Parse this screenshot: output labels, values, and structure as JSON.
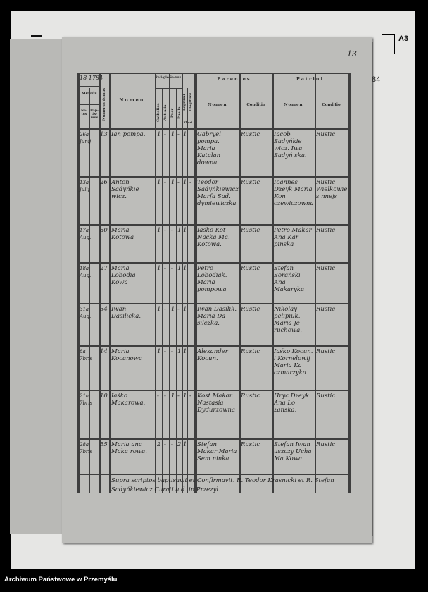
{
  "archive_label": "Archiwum Państwowe w Przemyślu",
  "marker": "A3",
  "page_number": "13",
  "facing_page_number": "84",
  "header": {
    "year_struck": "18",
    "year": "1784",
    "mensis": "Mensis",
    "natus": "Na-tus",
    "baptismus": "Bap-tis-mus",
    "numerus_domus": "Numerus domus",
    "nomen": "Nomen",
    "religio": "Reli-gio",
    "catholica": "Catholica",
    "aut_alia": "Aut Alia",
    "sexus": "Se-xus",
    "puer": "Puer",
    "puella": "Puella",
    "legitimi": "Legitimi",
    "illegitimi": "Illegitimi",
    "thori": "Thori",
    "parentes": "Parentes",
    "patrini": "Patrini",
    "p_nomen": "Nomen",
    "p_conditio": "Conditio",
    "pt_nomen": "Nomen",
    "pt_conditio": "Conditio"
  },
  "rows": [
    {
      "date": "26a Junij",
      "num": "13",
      "name": "Ian pompa.",
      "marks": [
        "1",
        "-",
        "1",
        "-",
        "1",
        ""
      ],
      "parents": "Gabryel pompa. Maria Katalan downa",
      "p_cond": "Rustic",
      "patrini": "Iacob Sadyńkie wicz. Iwa Sadyń ska.",
      "pt_cond": "Rustic"
    },
    {
      "date": "13a Julij",
      "num": "26",
      "name": "Anton Sadyńkie wicz.",
      "marks": [
        "1",
        "-",
        "1",
        "-",
        "1",
        "-"
      ],
      "parents": "Teodor Sadyńkiewicz Marfa Sad. dymiewiczka",
      "p_cond": "Rustic",
      "patrini": "Ioannes Dzeyk Maria Kon czewiczowna",
      "pt_cond": "Rustic Wielkowie s nnejs"
    },
    {
      "date": "17a Aug.",
      "num": "80",
      "name": "Maria Kotowa",
      "marks": [
        "1",
        "-",
        "-",
        "1",
        "1",
        ""
      ],
      "parents": "Iaśko Kot Nacka Ma. Kotowa.",
      "p_cond": "Rustic",
      "patrini": "Petro Makar Ana Kar pinska",
      "pt_cond": "Rustic"
    },
    {
      "date": "18a Aug.",
      "num": "27",
      "name": "Maria Lobodia Kowa",
      "marks": [
        "1",
        "-",
        "-",
        "1",
        "1",
        ""
      ],
      "parents": "Petro Lobodiak. Maria pompowa",
      "p_cond": "Rustic",
      "patrini": "Stefan Sorański Ana Makaryka",
      "pt_cond": "Rustic"
    },
    {
      "date": "31a Aug.",
      "num": "54",
      "name": "Iwan Dasilicka.",
      "marks": [
        "1",
        "-",
        "1",
        "-",
        "1",
        ""
      ],
      "parents": "Iwan Dasilik. Maria Da silczka.",
      "p_cond": "Rustic",
      "patrini": "Nikolay pelipiuk. Maria Je ruchowa.",
      "pt_cond": "Rustic"
    },
    {
      "date": "8a 7bris",
      "num": "14",
      "name": "Maria Kocanowa",
      "marks": [
        "1",
        "-",
        "-",
        "1",
        "1",
        ""
      ],
      "parents": "Alexander Kocun.",
      "p_cond": "Rustic",
      "patrini": "Iaśko Kocun. i Kornelowij Maria Ka czmarzyka",
      "pt_cond": "Rustic"
    },
    {
      "date": "21a 7bris",
      "num": "10",
      "name": "Iaśko Makarowa.",
      "marks": [
        "-",
        "-",
        "1",
        "-",
        "1",
        "-"
      ],
      "parents": "Kost Makar. Nastasia Dydurzowna",
      "p_cond": "Rustic",
      "patrini": "Hryc Dzeyk Ana Lo zanska.",
      "pt_cond": "Rustic"
    },
    {
      "date": "28a 7bris",
      "num": "55",
      "name": "Maria ana Maka rowa.",
      "marks": [
        "2",
        "-",
        "-",
        "2",
        "1",
        ""
      ],
      "parents": "Stefan Makar Maria Sem ninka",
      "p_cond": "Rustic",
      "patrini": "Stefan Iwan uszczy Ucha Ma Kowa.",
      "pt_cond": "Rustic"
    }
  ],
  "note": "Supra scriptos baptisavit et Confirmavit. R. Teodor Krasnicki et R. Stefan Sadyńkiewicz Curati a.d. in Przezyl."
}
